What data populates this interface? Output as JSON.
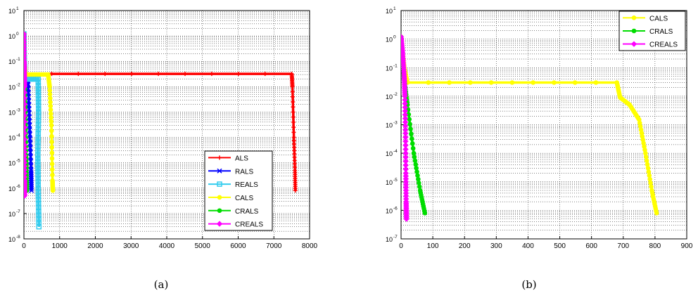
{
  "charts": [
    {
      "id": "a",
      "caption": "(a)",
      "chart_data": {
        "type": "line",
        "title": "",
        "xlabel": "",
        "ylabel": "",
        "xlim": [
          0,
          8000
        ],
        "ylim_exponent": [
          -8,
          1
        ],
        "yscale": "log",
        "grid": true,
        "legend_position": "bottom-right",
        "xticks": [
          "0",
          "1000",
          "2000",
          "3000",
          "4000",
          "5000",
          "6000",
          "7000",
          "8000"
        ],
        "yticks": [
          {
            "base": "10",
            "exp": "1"
          },
          {
            "base": "10",
            "exp": "0"
          },
          {
            "base": "10",
            "exp": "-1"
          },
          {
            "base": "10",
            "exp": "-2"
          },
          {
            "base": "10",
            "exp": "-3"
          },
          {
            "base": "10",
            "exp": "-4"
          },
          {
            "base": "10",
            "exp": "-5"
          },
          {
            "base": "10",
            "exp": "-6"
          },
          {
            "base": "10",
            "exp": "-7"
          },
          {
            "base": "10",
            "exp": "-8"
          }
        ],
        "series": [
          {
            "name": "ALS",
            "color": "#ff0000",
            "marker": "plus",
            "x": [
              0,
              10,
              30,
              7500,
              7520,
              7560,
              7590,
              7600
            ],
            "y": [
              1.2,
              0.1,
              0.032,
              0.032,
              0.01,
              0.0001,
              5e-06,
              8e-07
            ]
          },
          {
            "name": "RALS",
            "color": "#0000ff",
            "marker": "x",
            "x": [
              0,
              10,
              30,
              120,
              160,
              200,
              210
            ],
            "y": [
              1.2,
              0.1,
              0.02,
              0.012,
              0.0003,
              5e-06,
              8e-07
            ]
          },
          {
            "name": "REALS",
            "color": "#33ccee",
            "marker": "square",
            "x": [
              0,
              10,
              40,
              400,
              410,
              390,
              400,
              420
            ],
            "y": [
              1.2,
              0.1,
              0.02,
              0.02,
              0.001,
              2e-05,
              1e-06,
              3e-08
            ]
          },
          {
            "name": "CALS",
            "color": "#ffff00",
            "marker": "dot",
            "x": [
              0,
              10,
              40,
              680,
              720,
              770,
              800,
              810
            ],
            "y": [
              1.2,
              0.1,
              0.03,
              0.03,
              0.01,
              0.0003,
              2e-06,
              8e-07
            ]
          },
          {
            "name": "CRALS",
            "color": "#00dd00",
            "marker": "dot",
            "x": [
              0,
              5,
              15,
              40,
              60,
              75,
              80
            ],
            "y": [
              1.2,
              0.1,
              0.02,
              0.001,
              2e-05,
              2e-06,
              8e-07
            ]
          },
          {
            "name": "CREALS",
            "color": "#ff00ff",
            "marker": "diamond",
            "x": [
              0,
              5,
              10,
              15,
              16,
              17,
              18
            ],
            "y": [
              1.2,
              0.1,
              0.03,
              0.01,
              5e-05,
              2e-06,
              5e-07
            ]
          }
        ]
      }
    },
    {
      "id": "b",
      "caption": "(b)",
      "chart_data": {
        "type": "line",
        "title": "",
        "xlabel": "",
        "ylabel": "",
        "xlim": [
          0,
          900
        ],
        "ylim_exponent": [
          -7,
          1
        ],
        "yscale": "log",
        "grid": true,
        "legend_position": "top-right",
        "xticks": [
          "0",
          "100",
          "200",
          "300",
          "400",
          "500",
          "600",
          "700",
          "800",
          "900"
        ],
        "yticks": [
          {
            "base": "10",
            "exp": "1"
          },
          {
            "base": "10",
            "exp": "0"
          },
          {
            "base": "10",
            "exp": "-1"
          },
          {
            "base": "10",
            "exp": "-2"
          },
          {
            "base": "10",
            "exp": "-3"
          },
          {
            "base": "10",
            "exp": "-4"
          },
          {
            "base": "10",
            "exp": "-5"
          },
          {
            "base": "10",
            "exp": "-6"
          },
          {
            "base": "10",
            "exp": "-7"
          }
        ],
        "series": [
          {
            "name": "CALS",
            "color": "#ffff00",
            "marker": "dot",
            "x": [
              0,
              5,
              10,
              20,
              680,
              690,
              720,
              750,
              770,
              790,
              805
            ],
            "y": [
              1.2,
              0.3,
              0.1,
              0.03,
              0.03,
              0.009,
              0.005,
              0.0015,
              0.0001,
              5e-06,
              8e-07
            ]
          },
          {
            "name": "CRALS",
            "color": "#00dd00",
            "marker": "dot",
            "x": [
              0,
              5,
              10,
              20,
              40,
              60,
              75
            ],
            "y": [
              1.2,
              0.2,
              0.04,
              0.005,
              0.0001,
              5e-06,
              8e-07
            ]
          },
          {
            "name": "CREALS",
            "color": "#ff00ff",
            "marker": "diamond",
            "x": [
              0,
              5,
              10,
              12,
              14,
              15,
              16,
              17
            ],
            "y": [
              1.2,
              0.3,
              0.05,
              0.01,
              0.0005,
              2e-05,
              2e-06,
              5e-07
            ]
          }
        ]
      }
    }
  ]
}
